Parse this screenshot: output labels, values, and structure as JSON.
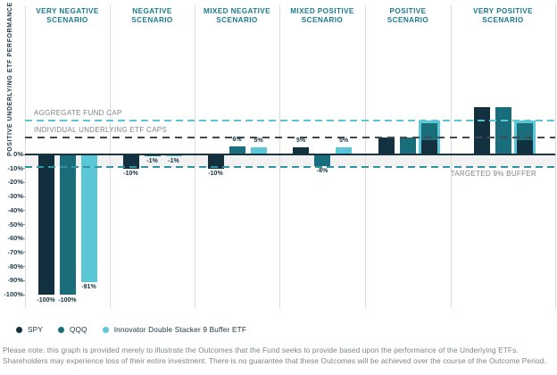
{
  "colors": {
    "spy": "#12303E",
    "qqq": "#1A6E7B",
    "innovator_etf": "#5AC6D6",
    "scenario_title": "#1B7C8F",
    "gray_text": "#7E8487",
    "divider": "#DBDCDD",
    "buffer_band": "#F2F2F3",
    "dark_dash": "#43484D",
    "buffer_dash": "#2E95A5",
    "axis": "#1A3340"
  },
  "footnote": "Please note: this graph is provided merely to illustrate the Outcomes that the Fund seeks to provide based upon the performance of the Underlying ETFs. Shareholders may experience loss of their entire investment. There is no guarantee that these Outcomes will be achieved over the course of the Outcome Period.",
  "chart_data": {
    "type": "bar",
    "ylabel": "POSITIVE UNDERLYING ETF PERFORMANCE",
    "unit": "%",
    "y_ticks": [
      {
        "value": 0,
        "label": "0%"
      },
      {
        "value": -10,
        "label": "-10%"
      },
      {
        "value": -20,
        "label": "-20%"
      },
      {
        "value": -30,
        "label": "-30%"
      },
      {
        "value": -40,
        "label": "-40%"
      },
      {
        "value": -50,
        "label": "-50%"
      },
      {
        "value": -60,
        "label": "-60%"
      },
      {
        "value": -70,
        "label": "-70%"
      },
      {
        "value": -80,
        "label": "-80%"
      },
      {
        "value": -90,
        "label": "-90%"
      },
      {
        "value": -100,
        "label": "-100%"
      }
    ],
    "ylim": [
      -100,
      40
    ],
    "grid": "off",
    "reference_lines": [
      {
        "id": "aggregate_cap",
        "label": "AGGREGATE FUND CAP",
        "value": 24,
        "style": "cyan"
      },
      {
        "id": "individual_caps",
        "label": "INDIVIDUAL UNDERLYING ETF CAPS",
        "value": 12,
        "style": "dark"
      },
      {
        "id": "buffer",
        "label": "TARGETED 9% BUFFER",
        "value": -9,
        "style": "teal"
      }
    ],
    "buffer_zone": {
      "from": 0,
      "to": -9
    },
    "legend": [
      {
        "name": "SPY",
        "color": "#12303E"
      },
      {
        "name": "QQQ",
        "color": "#1A6E7B"
      },
      {
        "name": "Innovator Double Stacker 9 Buffer ETF",
        "color": "#5AC6D6"
      }
    ],
    "scenarios": [
      {
        "label": "VERY NEGATIVE SCENARIO",
        "label_lines": [
          "VERY NEGATIVE",
          "SCENARIO"
        ],
        "bars": [
          {
            "series": "SPY",
            "value": -100,
            "label": "-100%"
          },
          {
            "series": "QQQ",
            "value": -100,
            "label": "-100%"
          },
          {
            "series": "Innovator Double Stacker 9 Buffer ETF",
            "value": -91,
            "label": "-91%"
          }
        ]
      },
      {
        "label": "NEGATIVE SCENARIO",
        "label_lines": [
          "NEGATIVE",
          "SCENARIO"
        ],
        "bars": [
          {
            "series": "SPY",
            "value": -10,
            "label": "-10%"
          },
          {
            "series": "QQQ",
            "value": -1,
            "label": "-1%"
          },
          {
            "series": "Innovator Double Stacker 9 Buffer ETF",
            "value": -1,
            "label": "-1%"
          }
        ]
      },
      {
        "label": "MIXED NEGATIVE SCENARIO",
        "label_lines": [
          "MIXED NEGATIVE",
          "SCENARIO"
        ],
        "bars": [
          {
            "series": "SPY",
            "value": -10,
            "label": "-10%"
          },
          {
            "series": "QQQ",
            "value": 6,
            "label": "6%"
          },
          {
            "series": "Innovator Double Stacker 9 Buffer ETF",
            "value": 5,
            "label": "5%"
          }
        ]
      },
      {
        "label": "MIXED POSITIVE SCENARIO",
        "label_lines": [
          "MIXED POSITIVE",
          "SCENARIO"
        ],
        "bars": [
          {
            "series": "SPY",
            "value": 5,
            "label": "5%"
          },
          {
            "series": "QQQ",
            "value": -8,
            "label": "-8%"
          },
          {
            "series": "Innovator Double Stacker 9 Buffer ETF",
            "value": 5,
            "label": "5%"
          }
        ]
      },
      {
        "label": "POSITIVE SCENARIO",
        "label_lines": [
          "POSITIVE",
          "SCENARIO"
        ],
        "bars": [
          {
            "series": "SPY",
            "value": 12,
            "label": null
          },
          {
            "series": "QQQ",
            "value": 12,
            "label": null
          },
          {
            "series": "Innovator Double Stacker 9 Buffer ETF",
            "type": "capped_stack",
            "cap": 24,
            "label": null,
            "segments": [
              {
                "series": "SPY",
                "from": 0,
                "to": 12
              },
              {
                "series": "QQQ",
                "from": 12,
                "to": 24
              }
            ]
          }
        ]
      },
      {
        "label": "VERY POSITIVE SCENARIO",
        "label_lines": [
          "VERY POSITIVE",
          "SCENARIO"
        ],
        "bars": [
          {
            "series": "SPY",
            "value": 34,
            "label": null
          },
          {
            "series": "QQQ",
            "value": 34,
            "label": null
          },
          {
            "series": "Innovator Double Stacker 9 Buffer ETF",
            "type": "capped_stack",
            "cap": 24,
            "label": null,
            "segments": [
              {
                "series": "SPY",
                "from": 0,
                "to": 12
              },
              {
                "series": "QQQ",
                "from": 12,
                "to": 24
              }
            ]
          }
        ]
      }
    ]
  }
}
